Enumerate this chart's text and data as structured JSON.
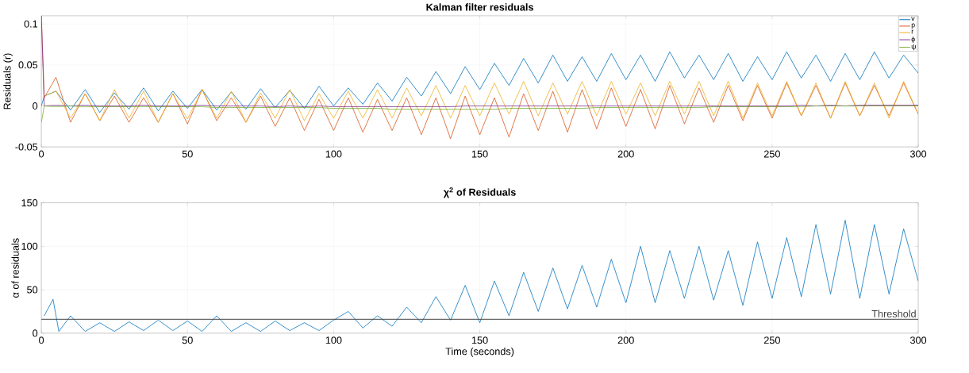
{
  "chart_data": [
    {
      "type": "line",
      "title": "Kalman filter residuals",
      "ylabel": "Residuals (r)",
      "grid": true,
      "legend": "top right",
      "xlim": [
        0,
        300
      ],
      "ylim": [
        -0.05,
        0.11
      ],
      "xticks": [
        0,
        50,
        100,
        150,
        200,
        250,
        300
      ],
      "yticks": [
        -0.05,
        0,
        0.05,
        0.1
      ],
      "x": [
        0,
        1,
        5,
        10,
        15,
        20,
        25,
        30,
        35,
        40,
        45,
        50,
        55,
        60,
        65,
        70,
        75,
        80,
        85,
        90,
        95,
        100,
        105,
        110,
        115,
        120,
        125,
        130,
        135,
        140,
        145,
        150,
        155,
        160,
        165,
        170,
        175,
        180,
        185,
        190,
        195,
        200,
        205,
        210,
        215,
        220,
        225,
        230,
        235,
        240,
        245,
        250,
        255,
        260,
        265,
        270,
        275,
        280,
        285,
        290,
        295,
        300
      ],
      "series": [
        {
          "name": "v",
          "color": "#0072bd",
          "values": [
            0.0,
            0.012,
            0.018,
            -0.005,
            0.02,
            -0.008,
            0.016,
            -0.004,
            0.022,
            -0.006,
            0.018,
            -0.003,
            0.02,
            -0.005,
            0.017,
            -0.004,
            0.021,
            -0.002,
            0.019,
            -0.003,
            0.024,
            0.0,
            0.022,
            0.002,
            0.028,
            0.006,
            0.035,
            0.012,
            0.042,
            0.015,
            0.048,
            0.02,
            0.052,
            0.025,
            0.058,
            0.028,
            0.062,
            0.03,
            0.06,
            0.03,
            0.064,
            0.032,
            0.062,
            0.03,
            0.066,
            0.034,
            0.062,
            0.032,
            0.064,
            0.03,
            0.06,
            0.032,
            0.066,
            0.034,
            0.062,
            0.03,
            0.064,
            0.032,
            0.066,
            0.034,
            0.062,
            0.04
          ]
        },
        {
          "name": "p",
          "color": "#d95319",
          "values": [
            0.11,
            0.01,
            0.035,
            -0.02,
            0.015,
            -0.018,
            0.012,
            -0.02,
            0.01,
            -0.02,
            0.015,
            -0.022,
            0.02,
            -0.018,
            0.01,
            -0.02,
            0.012,
            -0.025,
            0.01,
            -0.03,
            0.008,
            -0.03,
            0.01,
            -0.032,
            0.008,
            -0.03,
            0.01,
            -0.035,
            0.01,
            -0.04,
            0.012,
            -0.035,
            0.01,
            -0.038,
            0.015,
            -0.03,
            0.018,
            -0.032,
            0.02,
            -0.028,
            0.022,
            -0.025,
            0.02,
            -0.028,
            0.025,
            -0.022,
            0.022,
            -0.02,
            0.025,
            -0.018,
            0.025,
            -0.015,
            0.028,
            -0.012,
            0.025,
            -0.015,
            0.028,
            -0.012,
            0.025,
            -0.012,
            0.028,
            -0.01
          ]
        },
        {
          "name": "r",
          "color": "#edb120",
          "values": [
            null,
            0.012,
            0.018,
            -0.015,
            0.015,
            -0.018,
            0.02,
            -0.015,
            0.018,
            -0.02,
            0.015,
            -0.016,
            0.02,
            -0.015,
            0.018,
            -0.02,
            0.016,
            -0.015,
            0.02,
            -0.018,
            0.015,
            -0.015,
            0.018,
            -0.015,
            0.02,
            -0.015,
            0.022,
            -0.012,
            0.025,
            -0.015,
            0.025,
            -0.012,
            0.028,
            -0.01,
            0.03,
            -0.012,
            0.028,
            -0.01,
            0.03,
            -0.012,
            0.03,
            -0.01,
            0.028,
            -0.012,
            0.03,
            -0.01,
            0.03,
            -0.012,
            0.03,
            -0.015,
            0.028,
            -0.012,
            0.03,
            -0.012,
            0.028,
            -0.015,
            0.03,
            -0.012,
            0.028,
            -0.015,
            0.03,
            -0.01
          ]
        },
        {
          "name": "ϕ",
          "color": "#7e2f8e",
          "values": [
            0.11,
            0.0,
            0.001,
            0.0,
            0.001,
            0.0,
            0.0,
            0.0,
            0.001,
            0.0,
            0.0,
            0.0,
            0.001,
            0.0,
            0.0,
            0.0,
            0.0,
            -0.001,
            0.0,
            -0.001,
            0.0,
            -0.001,
            -0.001,
            -0.001,
            -0.001,
            -0.001,
            -0.001,
            -0.001,
            -0.001,
            -0.001,
            0.0,
            0.0,
            0.0,
            0.0,
            0.0,
            0.0,
            0.0,
            0.0,
            0.0,
            0.0,
            0.0,
            0.0,
            0.0,
            0.0,
            0.0,
            0.0,
            0.0,
            0.0,
            0.0,
            0.0,
            0.0,
            0.0,
            0.0,
            0.001,
            0.0,
            0.001,
            0.0,
            0.001,
            0.001,
            0.001,
            0.001,
            0.001
          ]
        },
        {
          "name": "ψ",
          "color": "#77ac30",
          "values": [
            -0.02,
            0.0,
            -0.001,
            0.0,
            -0.001,
            -0.001,
            -0.001,
            -0.001,
            -0.001,
            -0.001,
            -0.001,
            -0.001,
            -0.001,
            -0.002,
            -0.002,
            -0.002,
            -0.002,
            -0.002,
            -0.002,
            -0.002,
            -0.002,
            -0.003,
            -0.003,
            -0.003,
            -0.003,
            -0.004,
            -0.004,
            -0.004,
            -0.004,
            -0.004,
            -0.004,
            -0.004,
            -0.004,
            -0.003,
            -0.003,
            -0.003,
            -0.003,
            -0.003,
            -0.003,
            -0.002,
            -0.002,
            -0.002,
            -0.002,
            -0.002,
            -0.002,
            -0.002,
            -0.002,
            -0.001,
            -0.001,
            -0.001,
            -0.001,
            -0.001,
            -0.001,
            -0.001,
            0.0,
            0.0,
            0.0,
            0.0,
            0.0,
            0.0,
            0.0,
            0.0
          ]
        }
      ]
    },
    {
      "type": "line",
      "title": "χ$^{2}$ of Residuals",
      "xlabel": "Time (seconds)",
      "ylabel": "α of residuals",
      "grid": true,
      "xlim": [
        0,
        300
      ],
      "ylim": [
        0,
        150
      ],
      "xticks": [
        0,
        50,
        100,
        150,
        200,
        250,
        300
      ],
      "yticks": [
        0,
        50,
        100,
        150
      ],
      "x": [
        1,
        4,
        6,
        10,
        15,
        20,
        25,
        30,
        35,
        40,
        45,
        50,
        55,
        60,
        65,
        70,
        75,
        80,
        85,
        90,
        95,
        100,
        105,
        110,
        115,
        120,
        125,
        130,
        135,
        140,
        145,
        150,
        155,
        160,
        165,
        170,
        175,
        180,
        185,
        190,
        195,
        200,
        205,
        210,
        215,
        220,
        225,
        230,
        235,
        240,
        245,
        250,
        255,
        260,
        265,
        270,
        275,
        280,
        285,
        290,
        295,
        300
      ],
      "series": [
        {
          "color": "#0072bd",
          "values": [
            20,
            39,
            2,
            20,
            2,
            12,
            2,
            13,
            3,
            15,
            3,
            14,
            2,
            20,
            2,
            12,
            2,
            14,
            3,
            12,
            3,
            15,
            25,
            6,
            20,
            8,
            30,
            12,
            42,
            15,
            55,
            12,
            60,
            20,
            70,
            25,
            75,
            28,
            78,
            30,
            85,
            35,
            100,
            35,
            95,
            40,
            100,
            38,
            95,
            32,
            105,
            40,
            110,
            42,
            125,
            45,
            130,
            40,
            125,
            45,
            120,
            60
          ]
        }
      ],
      "ref_lines": [
        {
          "axis": "y",
          "value": 16,
          "label": "Threshold",
          "color": "#404040"
        }
      ]
    }
  ]
}
